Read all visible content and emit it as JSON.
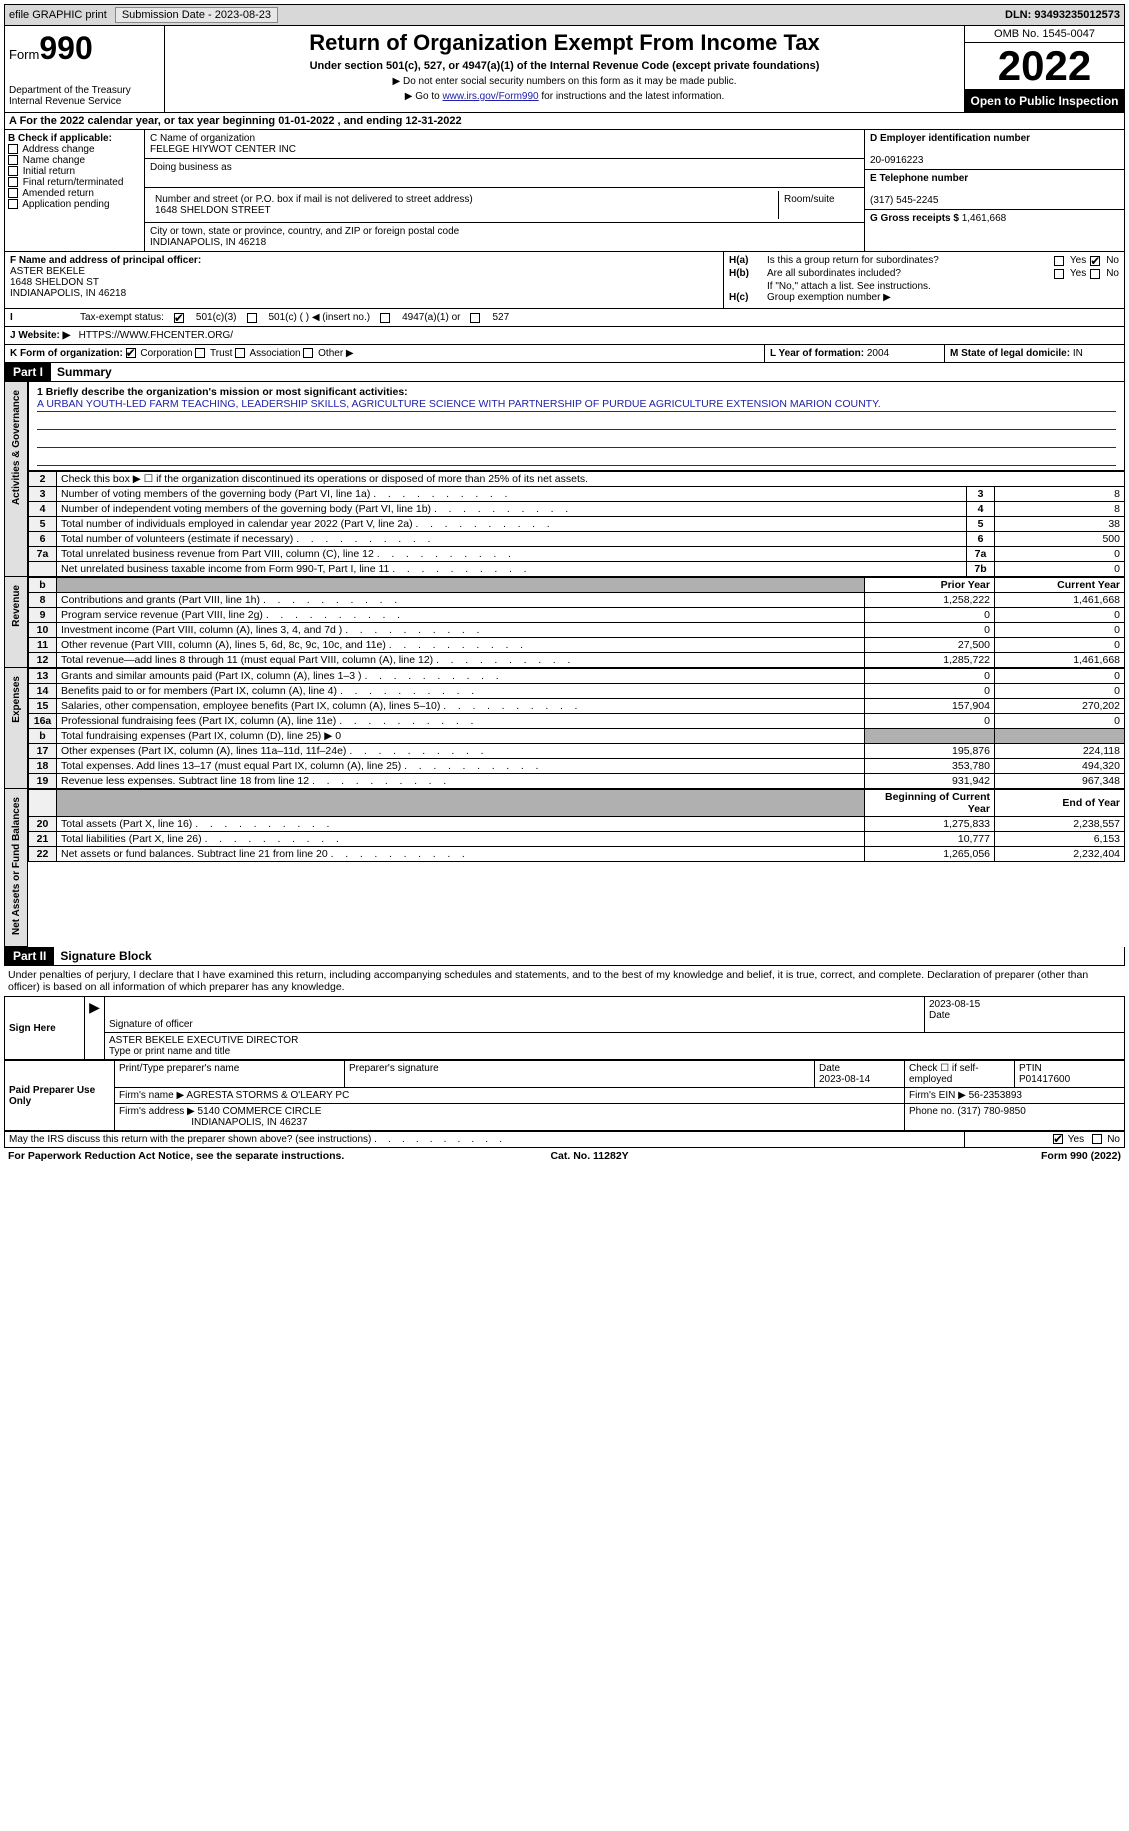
{
  "topbar": {
    "efile": "efile GRAPHIC print",
    "submission": "Submission Date - 2023-08-23",
    "dln": "DLN: 93493235012573"
  },
  "header": {
    "form_prefix": "Form",
    "form_number": "990",
    "title": "Return of Organization Exempt From Income Tax",
    "subtitle": "Under section 501(c), 527, or 4947(a)(1) of the Internal Revenue Code (except private foundations)",
    "note1": "▶ Do not enter social security numbers on this form as it may be made public.",
    "note2_prefix": "▶ Go to ",
    "note2_link": "www.irs.gov/Form990",
    "note2_suffix": " for instructions and the latest information.",
    "dept": "Department of the Treasury Internal Revenue Service",
    "omb": "OMB No. 1545-0047",
    "year": "2022",
    "inspect": "Open to Public Inspection"
  },
  "row_a": "A For the 2022 calendar year, or tax year beginning 01-01-2022    , and ending 12-31-2022",
  "section_b": {
    "header": "B Check if applicable:",
    "items": [
      "Address change",
      "Name change",
      "Initial return",
      "Final return/terminated",
      "Amended return",
      "Application pending"
    ]
  },
  "section_c": {
    "name_label": "C Name of organization",
    "name": "FELEGE HIYWOT CENTER INC",
    "dba_label": "Doing business as",
    "addr_label": "Number and street (or P.O. box if mail is not delivered to street address)",
    "room_label": "Room/suite",
    "addr": "1648 SHELDON STREET",
    "city_label": "City or town, state or province, country, and ZIP or foreign postal code",
    "city": "INDIANAPOLIS, IN  46218"
  },
  "section_d": {
    "ein_label": "D Employer identification number",
    "ein": "20-0916223",
    "phone_label": "E Telephone number",
    "phone": "(317) 545-2245",
    "gross_label": "G Gross receipts $",
    "gross": "1,461,668"
  },
  "section_f": {
    "label": "F  Name and address of principal officer:",
    "name": "ASTER BEKELE",
    "addr1": "1648 SHELDON ST",
    "addr2": "INDIANAPOLIS, IN  46218"
  },
  "section_h": {
    "ha": "Is this a group return for subordinates?",
    "hb": "Are all subordinates included?",
    "hb_note": "If \"No,\" attach a list. See instructions.",
    "hc": "Group exemption number ▶",
    "yes": "Yes",
    "no": "No"
  },
  "tax_status": {
    "label": "Tax-exempt status:",
    "opts": [
      "501(c)(3)",
      "501(c) (   ) ◀ (insert no.)",
      "4947(a)(1) or",
      "527"
    ]
  },
  "website": {
    "label": "J  Website: ▶",
    "value": "HTTPS://WWW.FHCENTER.ORG/"
  },
  "form_org": {
    "label": "K Form of organization:",
    "opts": [
      "Corporation",
      "Trust",
      "Association",
      "Other ▶"
    ],
    "year_label": "L Year of formation:",
    "year": "2004",
    "state_label": "M State of legal domicile:",
    "state": "IN"
  },
  "part1": {
    "hdr": "Part I",
    "title": "Summary"
  },
  "mission": {
    "label": "1   Briefly describe the organization's mission or most significant activities:",
    "text": "A URBAN YOUTH-LED FARM TEACHING, LEADERSHIP SKILLS, AGRICULTURE SCIENCE WITH PARTNERSHIP OF PURDUE AGRICULTURE EXTENSION MARION COUNTY."
  },
  "gov_lines": {
    "l2": "Check this box ▶ ☐  if the organization discontinued its operations or disposed of more than 25% of its net assets.",
    "rows": [
      {
        "n": "3",
        "t": "Number of voting members of the governing body (Part VI, line 1a)",
        "b": "3",
        "v": "8"
      },
      {
        "n": "4",
        "t": "Number of independent voting members of the governing body (Part VI, line 1b)",
        "b": "4",
        "v": "8"
      },
      {
        "n": "5",
        "t": "Total number of individuals employed in calendar year 2022 (Part V, line 2a)",
        "b": "5",
        "v": "38"
      },
      {
        "n": "6",
        "t": "Total number of volunteers (estimate if necessary)",
        "b": "6",
        "v": "500"
      },
      {
        "n": "7a",
        "t": "Total unrelated business revenue from Part VIII, column (C), line 12",
        "b": "7a",
        "v": "0"
      },
      {
        "n": "",
        "t": "Net unrelated business taxable income from Form 990-T, Part I, line 11",
        "b": "7b",
        "v": "0"
      }
    ]
  },
  "col_hdrs": {
    "prior": "Prior Year",
    "current": "Current Year",
    "boy": "Beginning of Current Year",
    "eoy": "End of Year"
  },
  "revenue": [
    {
      "n": "8",
      "t": "Contributions and grants (Part VIII, line 1h)",
      "p": "1,258,222",
      "c": "1,461,668"
    },
    {
      "n": "9",
      "t": "Program service revenue (Part VIII, line 2g)",
      "p": "0",
      "c": "0"
    },
    {
      "n": "10",
      "t": "Investment income (Part VIII, column (A), lines 3, 4, and 7d )",
      "p": "0",
      "c": "0"
    },
    {
      "n": "11",
      "t": "Other revenue (Part VIII, column (A), lines 5, 6d, 8c, 9c, 10c, and 11e)",
      "p": "27,500",
      "c": "0"
    },
    {
      "n": "12",
      "t": "Total revenue—add lines 8 through 11 (must equal Part VIII, column (A), line 12)",
      "p": "1,285,722",
      "c": "1,461,668"
    }
  ],
  "expenses": [
    {
      "n": "13",
      "t": "Grants and similar amounts paid (Part IX, column (A), lines 1–3 )",
      "p": "0",
      "c": "0"
    },
    {
      "n": "14",
      "t": "Benefits paid to or for members (Part IX, column (A), line 4)",
      "p": "0",
      "c": "0"
    },
    {
      "n": "15",
      "t": "Salaries, other compensation, employee benefits (Part IX, column (A), lines 5–10)",
      "p": "157,904",
      "c": "270,202"
    },
    {
      "n": "16a",
      "t": "Professional fundraising fees (Part IX, column (A), line 11e)",
      "p": "0",
      "c": "0"
    },
    {
      "n": "b",
      "t": "Total fundraising expenses (Part IX, column (D), line 25) ▶ 0",
      "p": "",
      "c": "",
      "shaded": true
    },
    {
      "n": "17",
      "t": "Other expenses (Part IX, column (A), lines 11a–11d, 11f–24e)",
      "p": "195,876",
      "c": "224,118"
    },
    {
      "n": "18",
      "t": "Total expenses. Add lines 13–17 (must equal Part IX, column (A), line 25)",
      "p": "353,780",
      "c": "494,320"
    },
    {
      "n": "19",
      "t": "Revenue less expenses. Subtract line 18 from line 12",
      "p": "931,942",
      "c": "967,348"
    }
  ],
  "netassets": [
    {
      "n": "20",
      "t": "Total assets (Part X, line 16)",
      "p": "1,275,833",
      "c": "2,238,557"
    },
    {
      "n": "21",
      "t": "Total liabilities (Part X, line 26)",
      "p": "10,777",
      "c": "6,153"
    },
    {
      "n": "22",
      "t": "Net assets or fund balances. Subtract line 21 from line 20",
      "p": "1,265,056",
      "c": "2,232,404"
    }
  ],
  "vlabels": {
    "gov": "Activities & Governance",
    "rev": "Revenue",
    "exp": "Expenses",
    "net": "Net Assets or Fund Balances"
  },
  "part2": {
    "hdr": "Part II",
    "title": "Signature Block"
  },
  "sig_note": "Under penalties of perjury, I declare that I have examined this return, including accompanying schedules and statements, and to the best of my knowledge and belief, it is true, correct, and complete. Declaration of preparer (other than officer) is based on all information of which preparer has any knowledge.",
  "sign_here": {
    "label": "Sign Here",
    "sig_line": "Signature of officer",
    "date": "2023-08-15",
    "date_label": "Date",
    "name": "ASTER BEKELE  EXECUTIVE DIRECTOR",
    "name_label": "Type or print name and title"
  },
  "paid_prep": {
    "label": "Paid Preparer Use Only",
    "h1": "Print/Type preparer's name",
    "h2": "Preparer's signature",
    "h3": "Date",
    "date": "2023-08-14",
    "h4": "Check ☐ if self-employed",
    "h5": "PTIN",
    "ptin": "P01417600",
    "firm_name_label": "Firm's name    ▶",
    "firm_name": "AGRESTA STORMS & O'LEARY PC",
    "firm_ein_label": "Firm's EIN ▶",
    "firm_ein": "56-2353893",
    "firm_addr_label": "Firm's address ▶",
    "firm_addr1": "5140 COMMERCE CIRCLE",
    "firm_addr2": "INDIANAPOLIS, IN  46237",
    "phone_label": "Phone no.",
    "phone": "(317) 780-9850"
  },
  "irs_discuss": "May the IRS discuss this return with the preparer shown above? (see instructions)",
  "footer": {
    "left": "For Paperwork Reduction Act Notice, see the separate instructions.",
    "mid": "Cat. No. 11282Y",
    "right": "Form 990 (2022)"
  }
}
